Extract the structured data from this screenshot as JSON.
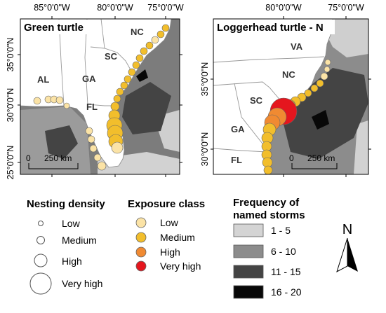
{
  "panels": {
    "left": {
      "title": "Green turtle",
      "lon_ticks": [
        "85°0'0\"W",
        "80°0'0\"W",
        "75°0'0\"W"
      ],
      "lat_ticks": [
        "35°0'0\"N",
        "30°0'0\"N",
        "25°0'0\"N"
      ],
      "state_labels": [
        "NC",
        "SC",
        "GA",
        "AL",
        "FL"
      ],
      "scale_bar": {
        "zero": "0",
        "label": "250 km"
      }
    },
    "right": {
      "title": "Loggerhead turtle - N",
      "lon_ticks": [
        "80°0'0\"W",
        "75°0'0\"W"
      ],
      "lat_ticks": [
        "35°0'0\"N",
        "30°0'0\"N"
      ],
      "state_labels": [
        "VA",
        "NC",
        "SC",
        "GA",
        "FL"
      ],
      "scale_bar": {
        "zero": "0",
        "label": "250 km"
      }
    }
  },
  "legend": {
    "nesting": {
      "title": "Nesting density",
      "items": [
        "Low",
        "Medium",
        "High",
        "Very high"
      ]
    },
    "exposure": {
      "title": "Exposure class",
      "items": [
        {
          "label": "Low",
          "color": "#fbe3a6"
        },
        {
          "label": "Medium",
          "color": "#f2be2c"
        },
        {
          "label": "High",
          "color": "#f08a32"
        },
        {
          "label": "Very high",
          "color": "#e5161e"
        }
      ]
    },
    "storms": {
      "title_line1": "Frequency of",
      "title_line2": "named storms",
      "items": [
        {
          "label": "1 - 5",
          "color": "#d4d4d4"
        },
        {
          "label": "6 - 10",
          "color": "#8c8c8c"
        },
        {
          "label": "11 - 15",
          "color": "#444444"
        },
        {
          "label": "16 - 20",
          "color": "#080808"
        }
      ]
    },
    "north_arrow": "N"
  }
}
